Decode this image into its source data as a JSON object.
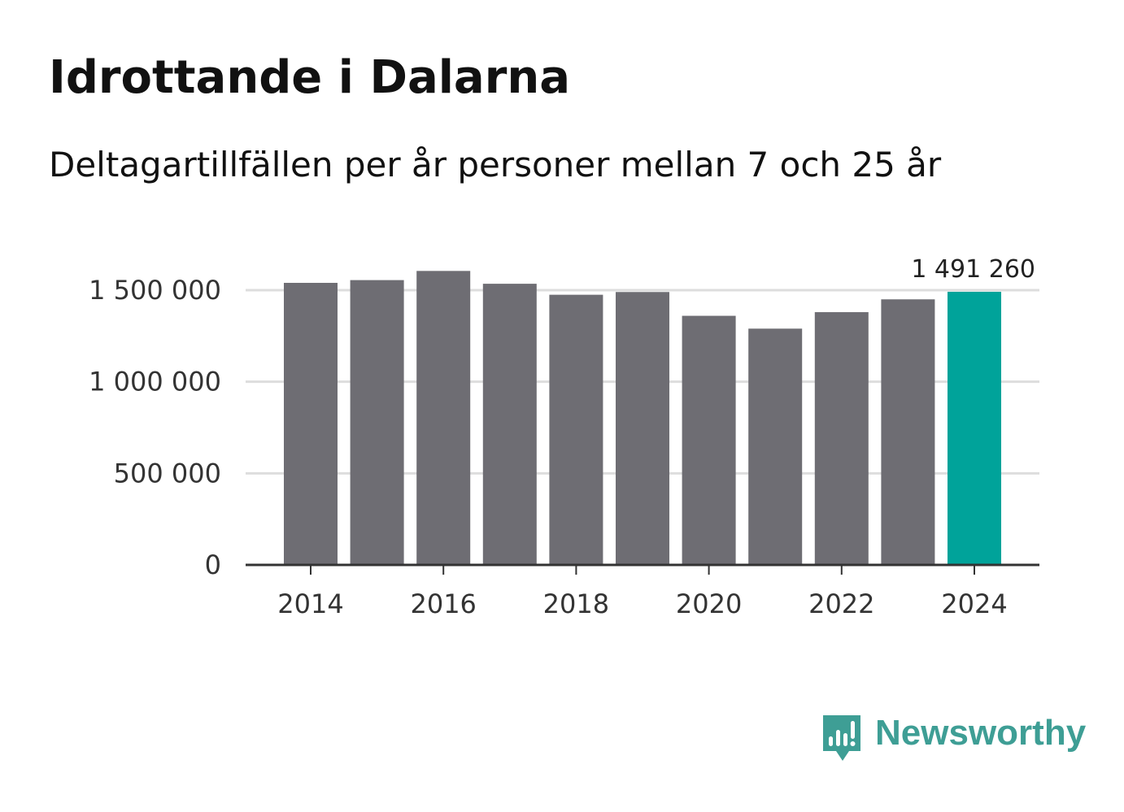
{
  "title": "Idrottande i Dalarna",
  "subtitle": "Deltagartillfällen per år personer mellan 7 och 25 år",
  "brand": {
    "name": "Newsworthy",
    "color": "#3e9e95",
    "icon": "newsworthy-logo-icon"
  },
  "colors": {
    "bar": "#6e6d73",
    "highlight": "#00a39a",
    "grid": "#dddddd",
    "axis": "#333333"
  },
  "chart_data": {
    "type": "bar",
    "title": "Idrottande i Dalarna",
    "subtitle": "Deltagartillfällen per år personer mellan 7 och 25 år",
    "xlabel": "",
    "ylabel": "",
    "categories": [
      "2014",
      "2015",
      "2016",
      "2017",
      "2018",
      "2019",
      "2020",
      "2021",
      "2022",
      "2023",
      "2024"
    ],
    "values": [
      1540000,
      1555000,
      1605000,
      1535000,
      1475000,
      1490000,
      1360000,
      1290000,
      1380000,
      1450000,
      1491260
    ],
    "highlight_index": 10,
    "data_labels": [
      {
        "index": 10,
        "text": "1 491 260"
      }
    ],
    "x_tick_labels": [
      "2014",
      "2016",
      "2018",
      "2020",
      "2022",
      "2024"
    ],
    "y_ticks": [
      0,
      500000,
      1000000,
      1500000
    ],
    "y_tick_labels": [
      "0",
      "500 000",
      "1 000 000",
      "1 500 000"
    ],
    "ylim": [
      0,
      1500000
    ],
    "grid": true,
    "legend": "none"
  }
}
